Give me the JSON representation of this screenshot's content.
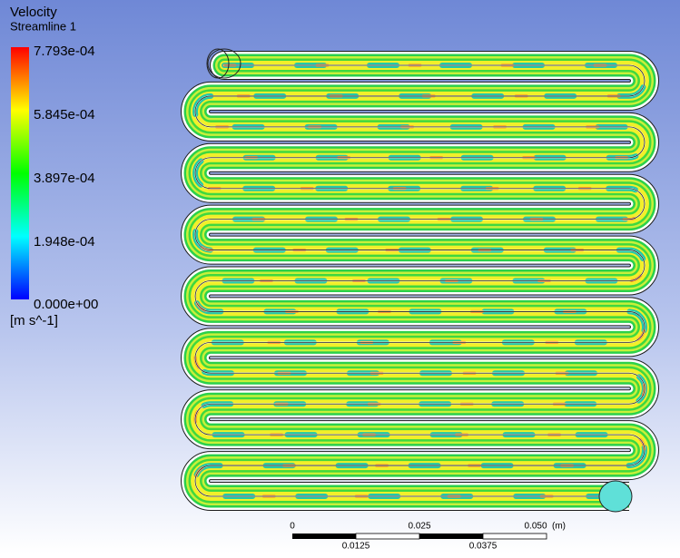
{
  "legend": {
    "variable": "Velocity",
    "object": "Streamline 1",
    "labels": [
      "7.793e-04",
      "5.845e-04",
      "3.897e-04",
      "1.948e-04",
      "0.000e+00"
    ],
    "unit": "[m s^-1]"
  },
  "scale_bar": {
    "top_labels": [
      "0",
      "0.025",
      "0.050"
    ],
    "unit": "(m)",
    "bottom_labels": [
      "0.0125",
      "0.0375"
    ]
  }
}
